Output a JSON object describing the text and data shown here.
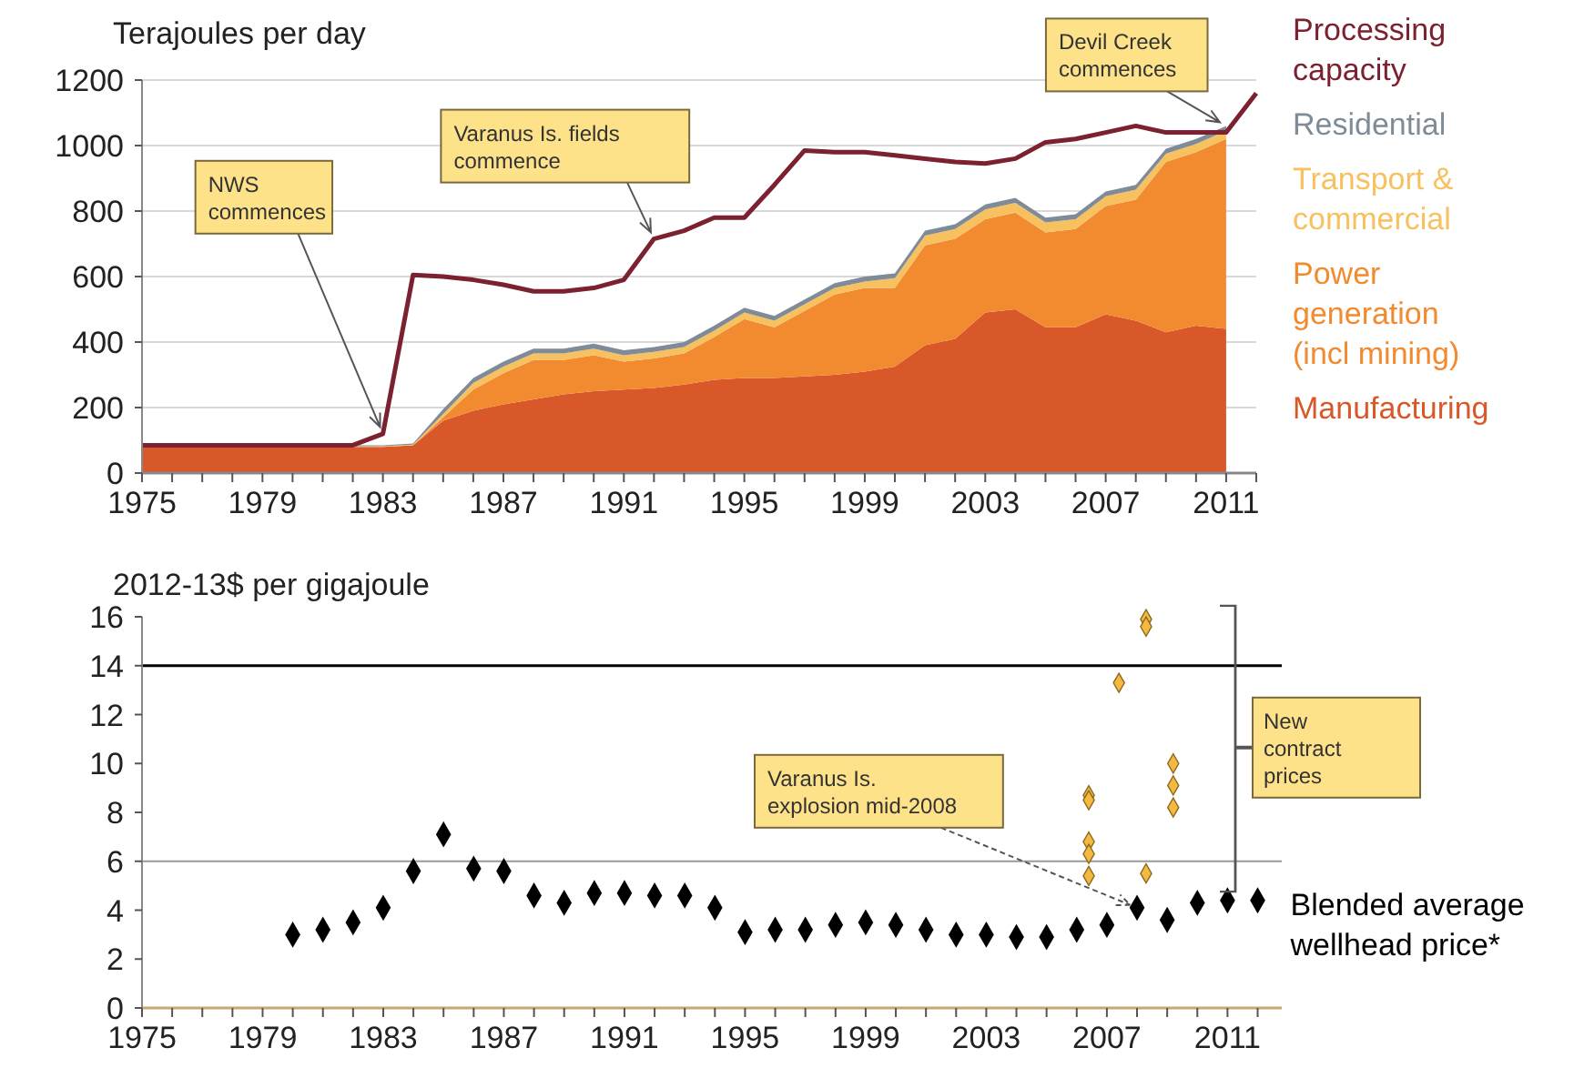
{
  "chart_data": [
    {
      "type": "area",
      "ylabel": "Terajoules per day",
      "stacked": true,
      "x": [
        1975,
        1976,
        1977,
        1978,
        1979,
        1980,
        1981,
        1982,
        1983,
        1984,
        1985,
        1986,
        1987,
        1988,
        1989,
        1990,
        1991,
        1992,
        1993,
        1994,
        1995,
        1996,
        1997,
        1998,
        1999,
        2000,
        2001,
        2002,
        2003,
        2004,
        2005,
        2006,
        2007,
        2008,
        2009,
        2010,
        2011
      ],
      "series": [
        {
          "name": "Manufacturing",
          "color": "#d9582a",
          "values": [
            80,
            80,
            80,
            80,
            80,
            80,
            80,
            80,
            80,
            85,
            160,
            190,
            210,
            225,
            240,
            250,
            255,
            260,
            270,
            285,
            290,
            290,
            295,
            300,
            310,
            325,
            390,
            410,
            490,
            500,
            445,
            445,
            485,
            465,
            430,
            450,
            440
          ]
        },
        {
          "name": "Power generation (incl mining)",
          "color": "#f28a30",
          "values": [
            0,
            0,
            0,
            0,
            0,
            0,
            0,
            0,
            0,
            0,
            10,
            65,
            95,
            120,
            105,
            110,
            85,
            90,
            95,
            130,
            180,
            155,
            200,
            245,
            255,
            240,
            305,
            305,
            285,
            295,
            290,
            300,
            330,
            370,
            520,
            530,
            580
          ]
        },
        {
          "name": "Transport & commercial",
          "color": "#f8c160",
          "values": [
            2,
            2,
            2,
            2,
            2,
            2,
            2,
            2,
            2,
            2,
            10,
            20,
            20,
            20,
            20,
            20,
            20,
            20,
            20,
            20,
            20,
            20,
            20,
            20,
            20,
            30,
            30,
            30,
            30,
            30,
            30,
            30,
            30,
            30,
            25,
            25,
            25
          ]
        },
        {
          "name": "Residential",
          "color": "#7f8c97",
          "values": [
            3,
            3,
            3,
            3,
            3,
            3,
            3,
            3,
            3,
            3,
            15,
            15,
            15,
            15,
            15,
            15,
            15,
            15,
            15,
            15,
            15,
            15,
            15,
            15,
            15,
            15,
            15,
            15,
            15,
            15,
            15,
            15,
            15,
            15,
            15,
            15,
            15
          ]
        },
        {
          "name": "Processing capacity",
          "type": "line",
          "color": "#7b2130",
          "x": [
            1975,
            1976,
            1977,
            1978,
            1979,
            1980,
            1981,
            1982,
            1983,
            1984,
            1985,
            1986,
            1987,
            1988,
            1989,
            1990,
            1991,
            1992,
            1993,
            1994,
            1995,
            1996,
            1997,
            1998,
            1999,
            2000,
            2001,
            2002,
            2003,
            2004,
            2005,
            2006,
            2007,
            2008,
            2009,
            2010,
            2011,
            2012
          ],
          "values": [
            85,
            85,
            85,
            85,
            85,
            85,
            85,
            85,
            120,
            605,
            600,
            590,
            575,
            555,
            555,
            565,
            590,
            715,
            740,
            780,
            780,
            880,
            985,
            980,
            980,
            970,
            960,
            950,
            945,
            960,
            1010,
            1020,
            1040,
            1060,
            1040,
            1040,
            1040,
            1160
          ]
        }
      ],
      "xlim": [
        1975,
        2012
      ],
      "ylim": [
        0,
        1200
      ],
      "xticks": [
        1975,
        {
          "value": 1976,
          "label": null
        },
        {
          "value": 1977,
          "label": null
        },
        {
          "value": 1978,
          "label": null
        },
        1979,
        {
          "value": 1980,
          "label": null
        },
        {
          "value": 1981,
          "label": null
        },
        {
          "value": 1982,
          "label": null
        },
        1983,
        {
          "value": 1984,
          "label": null
        },
        {
          "value": 1985,
          "label": null
        },
        {
          "value": 1986,
          "label": null
        },
        1987,
        {
          "value": 1988,
          "label": null
        },
        {
          "value": 1989,
          "label": null
        },
        {
          "value": 1990,
          "label": null
        },
        1991,
        {
          "value": 1992,
          "label": null
        },
        {
          "value": 1993,
          "label": null
        },
        {
          "value": 1994,
          "label": null
        },
        1995,
        {
          "value": 1996,
          "label": null
        },
        {
          "value": 1997,
          "label": null
        },
        {
          "value": 1998,
          "label": null
        },
        1999,
        {
          "value": 2000,
          "label": null
        },
        {
          "value": 2001,
          "label": null
        },
        {
          "value": 2002,
          "label": null
        },
        2003,
        {
          "value": 2004,
          "label": null
        },
        {
          "value": 2005,
          "label": null
        },
        {
          "value": 2006,
          "label": null
        },
        2007,
        {
          "value": 2008,
          "label": null
        },
        {
          "value": 2009,
          "label": null
        },
        {
          "value": 2010,
          "label": null
        },
        2011,
        {
          "value": 2012,
          "label": null
        }
      ],
      "yticks": [
        0,
        200,
        400,
        600,
        800,
        1000,
        1200
      ],
      "grid": "y",
      "legend": "right",
      "annotations": [
        {
          "text": "NWS commences",
          "x": 1983,
          "y": 120
        },
        {
          "text": "Varanus Is. fields commence",
          "x": 1992,
          "y": 715
        },
        {
          "text": "Devil Creek commences",
          "x": 2011,
          "y": 1060
        }
      ]
    },
    {
      "type": "scatter",
      "ylabel": "2012-13$ per gigajoule",
      "marker": "diamond",
      "series": [
        {
          "name": "Blended average wellhead price*",
          "color": "#000000",
          "x": [
            1980,
            1981,
            1982,
            1983,
            1984,
            1985,
            1986,
            1987,
            1988,
            1989,
            1990,
            1991,
            1992,
            1993,
            1994,
            1995,
            1996,
            1997,
            1998,
            1999,
            2000,
            2001,
            2002,
            2003,
            2004,
            2005,
            2006,
            2007,
            2008,
            2009,
            2010,
            2011,
            2012
          ],
          "values": [
            3.0,
            3.2,
            3.5,
            4.1,
            5.6,
            7.1,
            5.7,
            5.6,
            4.6,
            4.3,
            4.7,
            4.7,
            4.6,
            4.6,
            4.1,
            3.1,
            3.2,
            3.2,
            3.4,
            3.5,
            3.4,
            3.2,
            3.0,
            3.0,
            2.9,
            2.9,
            3.2,
            3.4,
            4.1,
            3.6,
            4.3,
            4.4,
            4.4
          ]
        },
        {
          "name": "New contract prices",
          "color": "#f5b942",
          "x": [
            2006.4,
            2006.4,
            2006.4,
            2006.4,
            2006.4,
            2007.4,
            2008.3,
            2008.3,
            2008.3,
            2009.2,
            2009.2,
            2009.2
          ],
          "values": [
            8.7,
            8.5,
            6.8,
            6.3,
            5.4,
            13.3,
            15.9,
            15.6,
            5.5,
            10.0,
            9.1,
            8.2
          ]
        }
      ],
      "xlim": [
        1975,
        2012.8
      ],
      "ylim": [
        0,
        16
      ],
      "xticks": [
        1975,
        {
          "value": 1976,
          "label": null
        },
        {
          "value": 1977,
          "label": null
        },
        {
          "value": 1978,
          "label": null
        },
        1979,
        {
          "value": 1980,
          "label": null
        },
        {
          "value": 1981,
          "label": null
        },
        {
          "value": 1982,
          "label": null
        },
        1983,
        {
          "value": 1984,
          "label": null
        },
        {
          "value": 1985,
          "label": null
        },
        {
          "value": 1986,
          "label": null
        },
        1987,
        {
          "value": 1988,
          "label": null
        },
        {
          "value": 1989,
          "label": null
        },
        {
          "value": 1990,
          "label": null
        },
        1991,
        {
          "value": 1992,
          "label": null
        },
        {
          "value": 1993,
          "label": null
        },
        {
          "value": 1994,
          "label": null
        },
        1995,
        {
          "value": 1996,
          "label": null
        },
        {
          "value": 1997,
          "label": null
        },
        {
          "value": 1998,
          "label": null
        },
        1999,
        {
          "value": 2000,
          "label": null
        },
        {
          "value": 2001,
          "label": null
        },
        {
          "value": 2002,
          "label": null
        },
        2003,
        {
          "value": 2004,
          "label": null
        },
        {
          "value": 2005,
          "label": null
        },
        {
          "value": 2006,
          "label": null
        },
        2007,
        {
          "value": 2008,
          "label": null
        },
        {
          "value": 2009,
          "label": null
        },
        {
          "value": 2010,
          "label": null
        },
        2011,
        {
          "value": 2012,
          "label": null
        }
      ],
      "yticks": [
        0,
        2,
        4,
        6,
        8,
        10,
        12,
        14,
        16
      ],
      "legend": "right",
      "ref_lines": [
        {
          "axis": "y",
          "value": 14,
          "color": "#000000"
        },
        {
          "axis": "y",
          "value": 6,
          "color": "#999999"
        }
      ],
      "annotations": [
        {
          "text": "Varanus Is. explosion mid-2008",
          "x": 2008,
          "y": 4.1
        }
      ]
    }
  ]
}
